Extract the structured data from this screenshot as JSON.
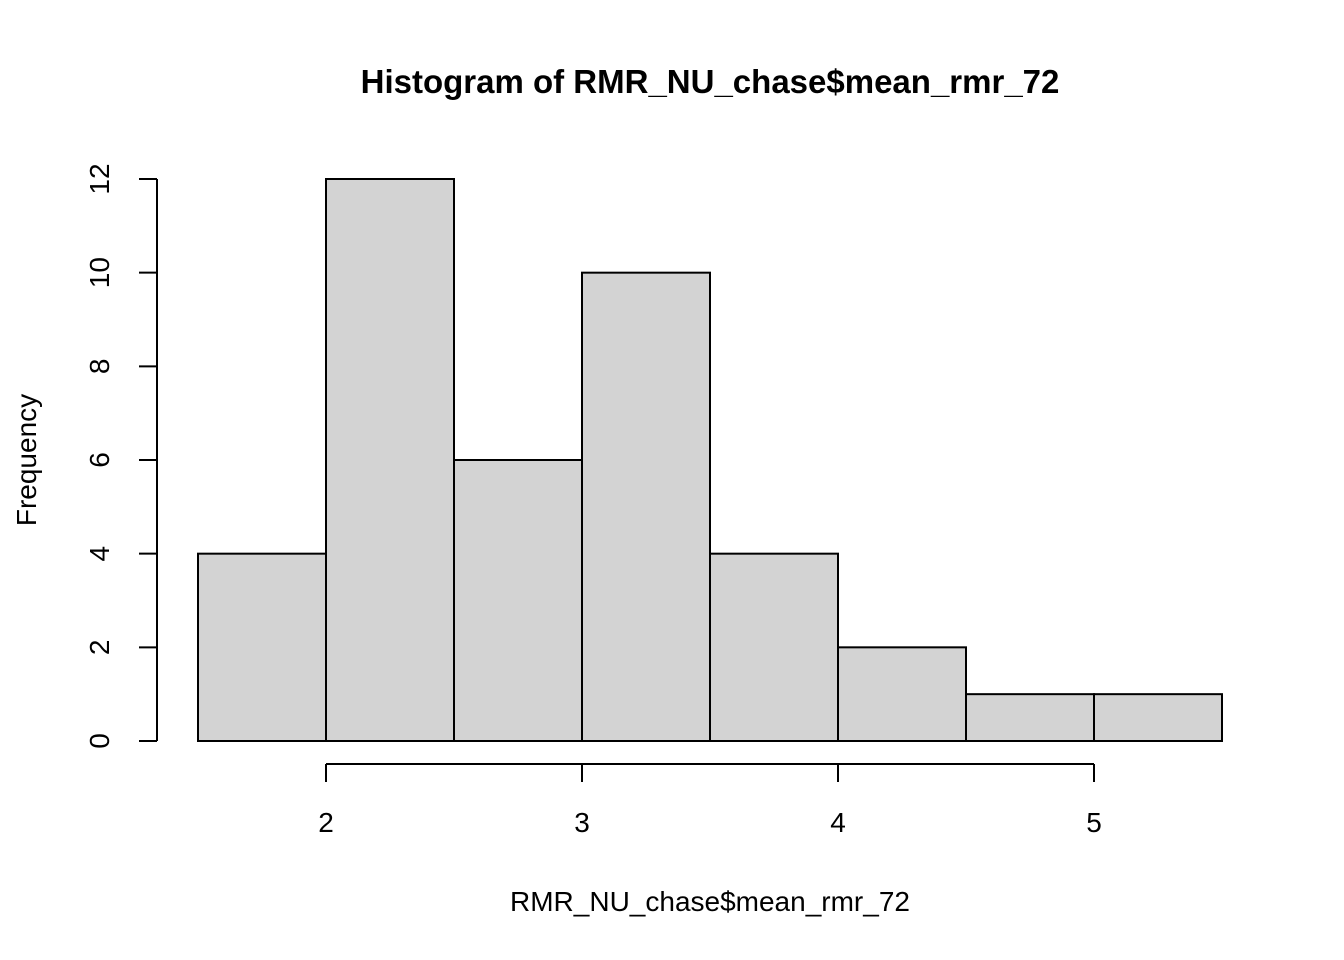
{
  "chart_data": {
    "type": "bar",
    "subtype": "histogram",
    "title": "Histogram of RMR_NU_chase$mean_rmr_72",
    "xlabel": "RMR_NU_chase$mean_rmr_72",
    "ylabel": "Frequency",
    "bins": [
      {
        "start": 1.5,
        "end": 2.0,
        "count": 4
      },
      {
        "start": 2.0,
        "end": 2.5,
        "count": 12
      },
      {
        "start": 2.5,
        "end": 3.0,
        "count": 6
      },
      {
        "start": 3.0,
        "end": 3.5,
        "count": 10
      },
      {
        "start": 3.5,
        "end": 4.0,
        "count": 4
      },
      {
        "start": 4.0,
        "end": 4.5,
        "count": 2
      },
      {
        "start": 4.5,
        "end": 5.0,
        "count": 1
      },
      {
        "start": 5.0,
        "end": 5.5,
        "count": 1
      }
    ],
    "x_ticks": [
      "2",
      "3",
      "4",
      "5"
    ],
    "y_ticks": [
      "0",
      "2",
      "4",
      "6",
      "8",
      "10",
      "12"
    ],
    "xlim": [
      1.5,
      5.5
    ],
    "ylim": [
      0,
      12
    ],
    "grid": false,
    "bar_fill": "#d3d3d3",
    "bar_stroke": "#000000"
  }
}
